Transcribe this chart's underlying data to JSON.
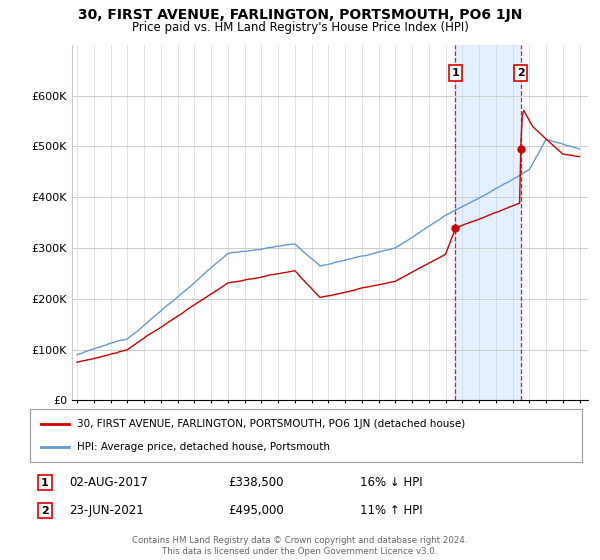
{
  "title": "30, FIRST AVENUE, FARLINGTON, PORTSMOUTH, PO6 1JN",
  "subtitle": "Price paid vs. HM Land Registry's House Price Index (HPI)",
  "legend_line1": "30, FIRST AVENUE, FARLINGTON, PORTSMOUTH, PO6 1JN (detached house)",
  "legend_line2": "HPI: Average price, detached house, Portsmouth",
  "annotation1_label": "1",
  "annotation1_date": "02-AUG-2017",
  "annotation1_price": "£338,500",
  "annotation1_hpi": "16% ↓ HPI",
  "annotation2_label": "2",
  "annotation2_date": "23-JUN-2021",
  "annotation2_price": "£495,000",
  "annotation2_hpi": "11% ↑ HPI",
  "footnote": "Contains HM Land Registry data © Crown copyright and database right 2024.\nThis data is licensed under the Open Government Licence v3.0.",
  "red_color": "#cc0000",
  "blue_color": "#6699cc",
  "shaded_color": "#ddeeff",
  "vline_color": "#dd0000",
  "background_color": "#ffffff",
  "grid_color": "#cccccc",
  "ylim": [
    0,
    700000
  ],
  "yticks": [
    0,
    100000,
    200000,
    300000,
    400000,
    500000,
    600000
  ],
  "ytick_labels": [
    "£0",
    "£100K",
    "£200K",
    "£300K",
    "£400K",
    "£500K",
    "£600K"
  ],
  "sale1_x": 2017.583,
  "sale1_y": 338500,
  "sale2_x": 2021.472,
  "sale2_y": 495000,
  "shade_x1": 2017.583,
  "shade_x2": 2021.472,
  "xmin": 1994.7,
  "xmax": 2025.5
}
